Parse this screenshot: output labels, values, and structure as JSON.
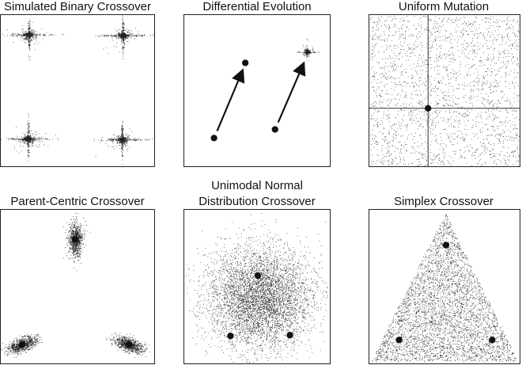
{
  "panels": [
    {
      "id": "sbx",
      "title": [
        "Simulated Binary Crossover"
      ]
    },
    {
      "id": "de",
      "title": [
        "Differential Evolution"
      ]
    },
    {
      "id": "um",
      "title": [
        "Uniform Mutation"
      ]
    },
    {
      "id": "pcx",
      "title": [
        "Parent-Centric Crossover"
      ]
    },
    {
      "id": "undx",
      "title": [
        "Unimodal Normal",
        "Distribution Crossover"
      ]
    },
    {
      "id": "spx",
      "title": [
        "Simplex Crossover"
      ]
    }
  ]
}
